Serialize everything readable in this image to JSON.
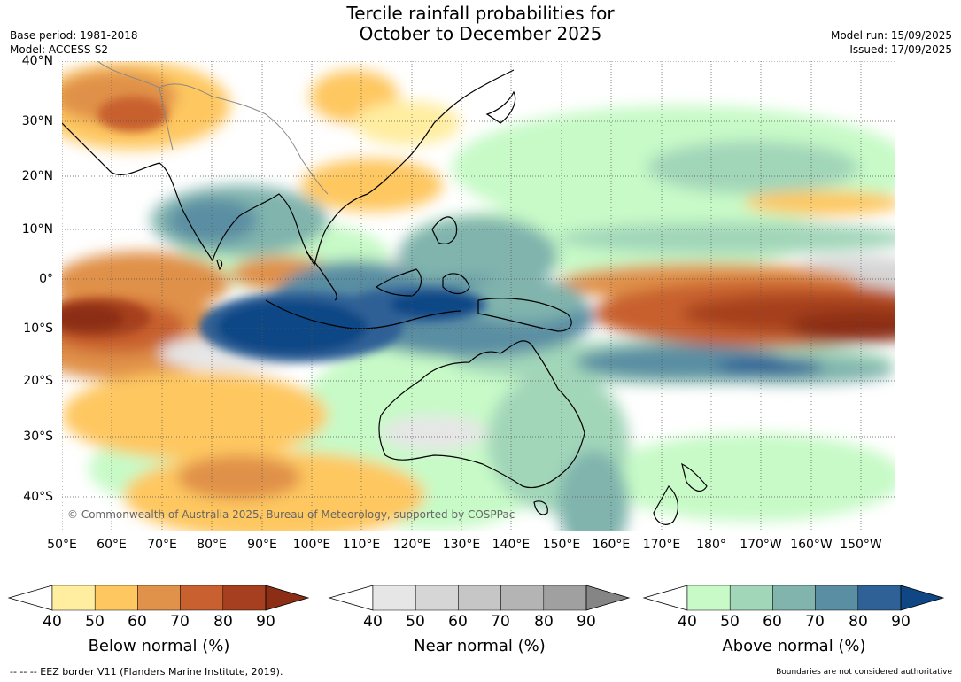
{
  "title": {
    "line1": "Tercile rainfall probabilities for",
    "line2": "October to December 2025"
  },
  "meta_left": {
    "base_period": "Base period: 1981-2018",
    "model": "Model: ACCESS-S2"
  },
  "meta_right": {
    "model_run": "Model run: 15/09/2025",
    "issued": "Issued: 17/09/2025"
  },
  "map": {
    "lon_labels": [
      "50°E",
      "60°E",
      "70°E",
      "80°E",
      "90°E",
      "100°E",
      "110°E",
      "120°E",
      "130°E",
      "140°E",
      "150°E",
      "160°E",
      "170°E",
      "180°",
      "170°W",
      "160°W",
      "150°W"
    ],
    "lat_labels": [
      "40°N",
      "30°N",
      "20°N",
      "10°N",
      "0°",
      "10°S",
      "20°S",
      "30°S",
      "40°S"
    ],
    "copyright": "© Commonwealth of Australia 2025, Bureau of Meteorology, supported by COSPPac",
    "extent": {
      "lon_min": 50,
      "lon_max": 217,
      "lat_min": -46,
      "lat_max": 40
    }
  },
  "colorbars": {
    "below": {
      "title": "Below normal (%)",
      "ticks": [
        "40",
        "50",
        "60",
        "70",
        "80",
        "90"
      ],
      "colors": [
        "#ffeda0",
        "#fec760",
        "#e0914a",
        "#c8602f",
        "#a63f1f"
      ],
      "over": "#8c2d16"
    },
    "near": {
      "title": "Near normal (%)",
      "ticks": [
        "40",
        "50",
        "60",
        "70",
        "80",
        "90"
      ],
      "colors": [
        "#e6e6e6",
        "#d6d6d6",
        "#c6c6c6",
        "#b4b4b4",
        "#a0a0a0"
      ],
      "over": "#858585"
    },
    "above": {
      "title": "Above normal (%)",
      "ticks": [
        "40",
        "50",
        "60",
        "70",
        "80",
        "90"
      ],
      "colors": [
        "#c7fac7",
        "#a2d6b9",
        "#80b4ad",
        "#5a8ea3",
        "#2f6196"
      ],
      "over": "#0f4785"
    }
  },
  "footer": {
    "left": "--  --  -- EEZ border V11 (Flanders Marine Institute, 2019).",
    "right": "Boundaries are not considered authoritative"
  }
}
